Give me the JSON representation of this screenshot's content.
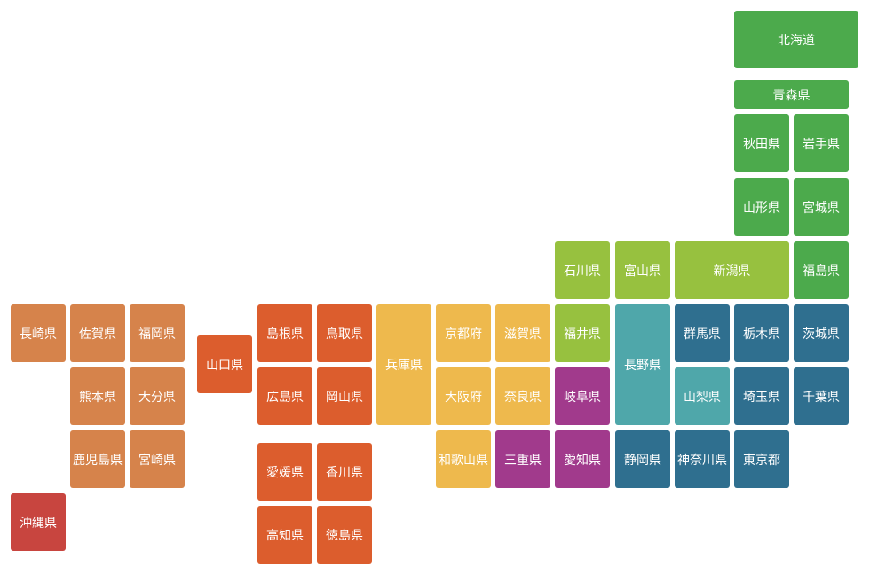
{
  "regions": [
    {
      "color": "#4caa4c",
      "prefectures": [
        "北海道",
        "青森県",
        "秋田県",
        "岩手県",
        "山形県",
        "宮城県",
        "福島県"
      ]
    },
    {
      "color": "#97c13f",
      "prefectures": [
        "石川県",
        "富山県",
        "新潟県",
        "福井県"
      ]
    },
    {
      "color": "#4fa7aa",
      "prefectures": [
        "長野県",
        "山梨県"
      ]
    },
    {
      "color": "#2f6f8f",
      "prefectures": [
        "群馬県",
        "栃木県",
        "茨城県",
        "埼玉県",
        "千葉県",
        "静岡県",
        "神奈川県",
        "東京都"
      ]
    },
    {
      "color": "#a13a8c",
      "prefectures": [
        "岐阜県",
        "三重県",
        "愛知県"
      ]
    },
    {
      "color": "#eeb94d",
      "prefectures": [
        "兵庫県",
        "京都府",
        "滋賀県",
        "大阪府",
        "奈良県",
        "和歌山県"
      ]
    },
    {
      "color": "#dc5d2d",
      "prefectures": [
        "山口県",
        "島根県",
        "鳥取県",
        "広島県",
        "岡山県",
        "愛媛県",
        "香川県",
        "高知県",
        "徳島県"
      ]
    },
    {
      "color": "#d6834b",
      "prefectures": [
        "長崎県",
        "佐賀県",
        "福岡県",
        "熊本県",
        "大分県",
        "鹿児島県",
        "宮崎県"
      ]
    },
    {
      "color": "#c8453f",
      "prefectures": [
        "沖縄県"
      ]
    }
  ]
}
